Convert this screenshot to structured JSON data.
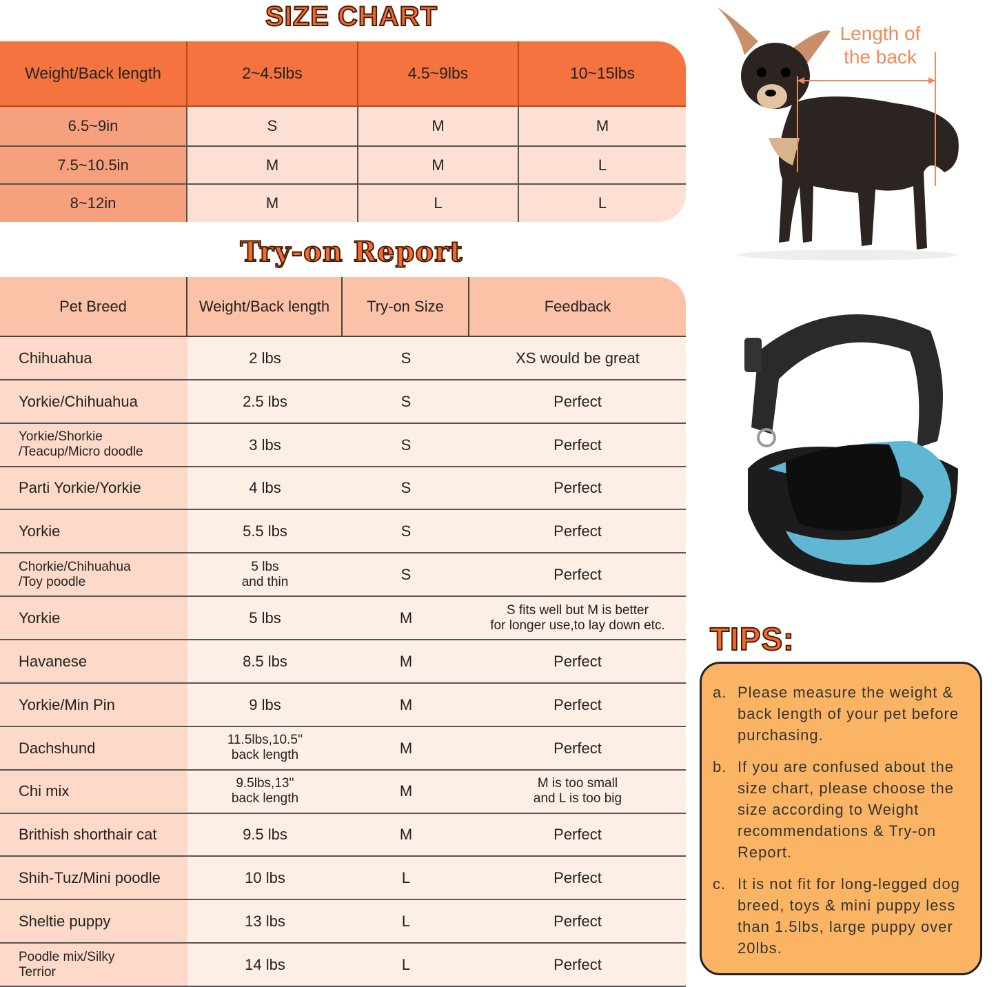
{
  "size_chart": {
    "title": "SIZE CHART",
    "header": [
      "Weight/Back length",
      "2~4.5lbs",
      "4.5~9lbs",
      "10~15lbs"
    ],
    "rows": [
      [
        "6.5~9in",
        "S",
        "M",
        "M"
      ],
      [
        "7.5~10.5in",
        "M",
        "M",
        "L"
      ],
      [
        "8~12in",
        "M",
        "L",
        "L"
      ]
    ]
  },
  "measure_label": [
    "Length of",
    "the back"
  ],
  "try_on_report": {
    "title": "Try-on Report",
    "header": [
      "Pet Breed",
      "Weight/Back length",
      "Try-on Size",
      "Feedback"
    ],
    "rows": [
      [
        "Chihuahua",
        "2 lbs",
        "S",
        "XS would be great"
      ],
      [
        "Yorkie/Chihuahua",
        "2.5 lbs",
        "S",
        "Perfect"
      ],
      [
        "Yorkie/Shorkie\n/Teacup/Micro doodle",
        "3 lbs",
        "S",
        "Perfect"
      ],
      [
        "Parti Yorkie/Yorkie",
        "4 lbs",
        "S",
        "Perfect"
      ],
      [
        "Yorkie",
        "5.5 lbs",
        "S",
        "Perfect"
      ],
      [
        "Chorkie/Chihuahua\n/Toy poodle",
        "5 lbs\nand thin",
        "S",
        "Perfect"
      ],
      [
        "Yorkie",
        "5 lbs",
        "M",
        "S fits well but M is better\nfor longer use,to lay down etc."
      ],
      [
        "Havanese",
        "8.5 lbs",
        "M",
        "Perfect"
      ],
      [
        "Yorkie/Min Pin",
        "9 lbs",
        "M",
        "Perfect"
      ],
      [
        "Dachshund",
        "11.5lbs,10.5''\nback length",
        "M",
        "Perfect"
      ],
      [
        "Chi mix",
        "9.5lbs,13''\nback length",
        "M",
        "M is too small\nand L is too big"
      ],
      [
        "Brithish shorthair cat",
        "9.5 lbs",
        "M",
        "Perfect"
      ],
      [
        "Shih-Tuz/Mini poodle",
        "10 lbs",
        "L",
        "Perfect"
      ],
      [
        "Sheltie puppy",
        "13 lbs",
        "L",
        "Perfect"
      ],
      [
        "Poodle mix/Silky\n Terrior",
        "14 lbs",
        "L",
        "Perfect"
      ]
    ]
  },
  "tips": {
    "title": "TIPS:",
    "items": [
      {
        "marker": "a.",
        "text": "Please measure the weight & back length of your pet before purchasing."
      },
      {
        "marker": "b.",
        "text": "If you are confused about the size chart, please choose the size according to Weight recommendations & Try-on Report."
      },
      {
        "marker": "c.",
        "text": "It is not fit for long-legged dog breed, toys & mini puppy less than 1.5lbs, large puppy over 20lbs."
      }
    ]
  }
}
